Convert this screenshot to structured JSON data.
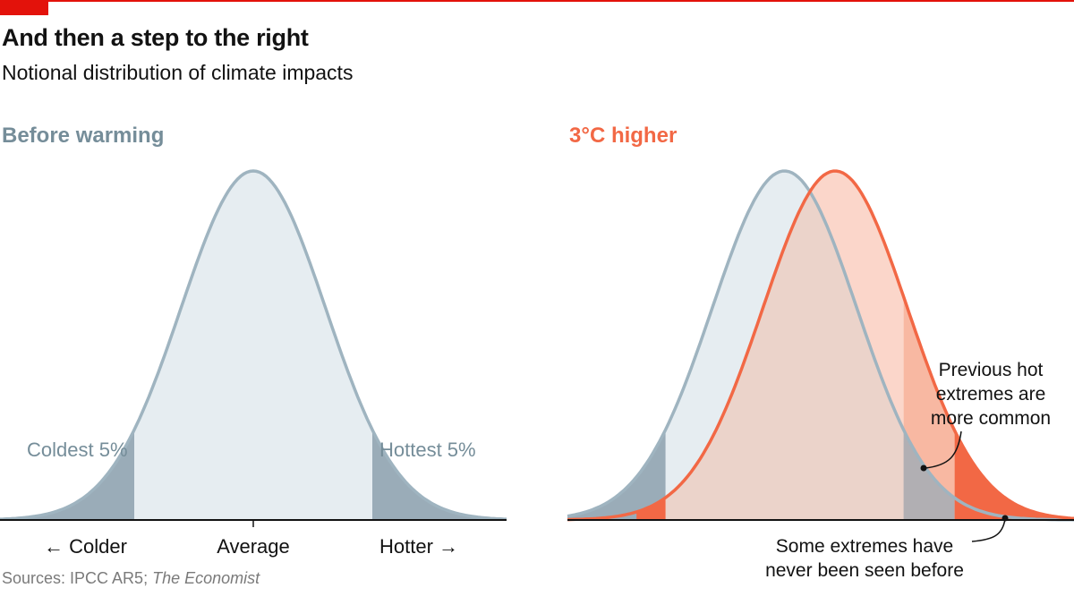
{
  "header": {
    "title": "And then a step to the right",
    "subtitle": "Notional distribution of climate impacts"
  },
  "source": {
    "prefix": "Sources: IPCC AR5; ",
    "italic": "The Economist"
  },
  "colors": {
    "brand_red": "#e3120b",
    "before_line": "#9fb4c0",
    "before_fill": "#e6edf1",
    "before_tail": "#9aacb8",
    "before_label": "#758d99",
    "after_line": "#f26845",
    "after_fill": "#fbd6ca",
    "after_tail": "#f26845",
    "after_hot_zone": "#f8b8a2",
    "overlap_fill": "#ebd3ca"
  },
  "chart_data": [
    {
      "type": "area",
      "panel_title": "Before warming",
      "series": [
        {
          "mean": 0,
          "sd": 1
        }
      ],
      "xlim": [
        -3.5,
        3.5
      ],
      "tail_cutoffs": [
        -1.645,
        1.645
      ],
      "annotations": {
        "coldest": "Coldest 5%",
        "hottest": "Hottest 5%"
      },
      "axis_labels": {
        "left": "← Colder",
        "center": "Average",
        "right": "Hotter →"
      }
    },
    {
      "type": "area",
      "panel_title": "3°C higher",
      "series": [
        {
          "mean": 0,
          "sd": 1
        },
        {
          "mean": 0.7,
          "sd": 1
        }
      ],
      "xlim": [
        -3.0,
        4.0
      ],
      "tail_cutoffs": [
        -1.645,
        1.645
      ],
      "new_extreme_cutoff": 2.35,
      "annotations": {
        "hot_extremes": [
          "Previous hot",
          "extremes are",
          "more common"
        ],
        "never_seen": [
          "Some extremes have",
          "never been seen before"
        ]
      }
    }
  ]
}
